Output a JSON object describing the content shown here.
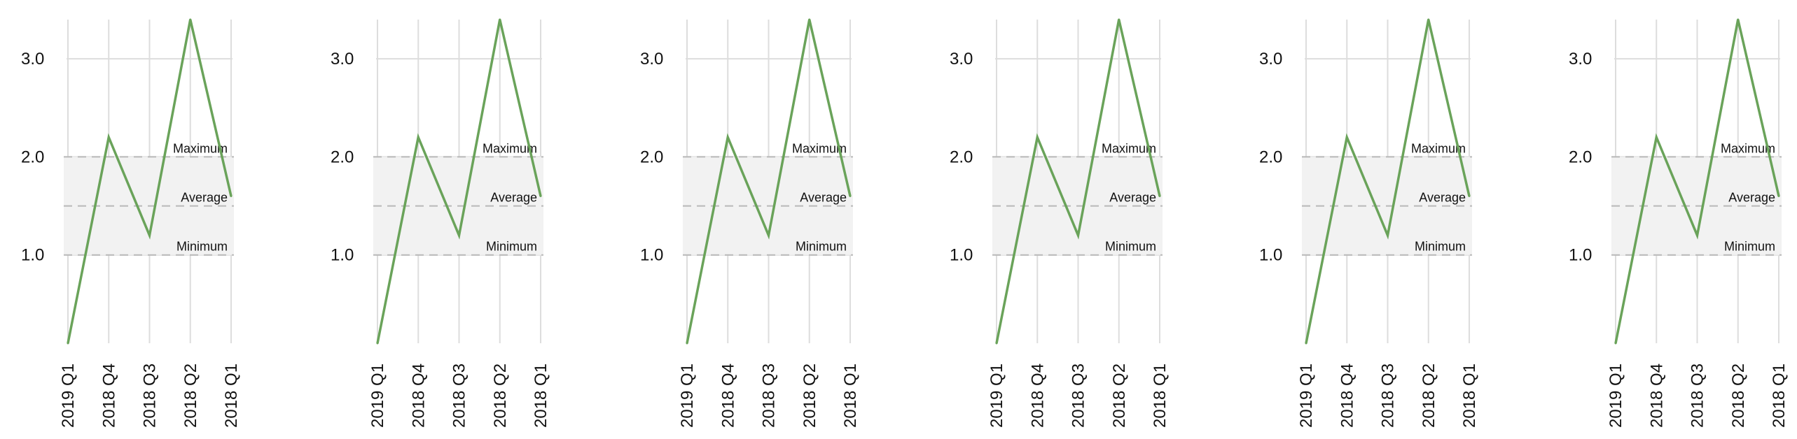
{
  "colors": {
    "series": "#6aa35a",
    "band": "#f2f2f2",
    "grid": "#dddddd",
    "reference": "#b8b8b8"
  },
  "chart_data": [
    {
      "type": "line",
      "categories": [
        "2019 Q1",
        "2018 Q4",
        "2018 Q3",
        "2018 Q2",
        "2018 Q1"
      ],
      "values": [
        0.1,
        2.2,
        1.2,
        3.4,
        1.6
      ],
      "ylim": [
        0.1,
        3.4
      ],
      "yticks": [
        "1.0",
        "2.0",
        "3.0"
      ],
      "grid": true,
      "band": {
        "min": 1.0,
        "max": 2.0
      },
      "reference_lines": [
        {
          "label": "Maximum",
          "value": 2.0
        },
        {
          "label": "Average",
          "value": 1.5
        },
        {
          "label": "Minimum",
          "value": 1.0
        }
      ]
    },
    {
      "type": "line",
      "categories": [
        "2019 Q1",
        "2018 Q4",
        "2018 Q3",
        "2018 Q2",
        "2018 Q1"
      ],
      "values": [
        0.1,
        2.2,
        1.2,
        3.4,
        1.6
      ],
      "ylim": [
        0.1,
        3.4
      ],
      "yticks": [
        "1.0",
        "2.0",
        "3.0"
      ],
      "grid": true,
      "band": {
        "min": 1.0,
        "max": 2.0
      },
      "reference_lines": [
        {
          "label": "Maximum",
          "value": 2.0
        },
        {
          "label": "Average",
          "value": 1.5
        },
        {
          "label": "Minimum",
          "value": 1.0
        }
      ]
    },
    {
      "type": "line",
      "categories": [
        "2019 Q1",
        "2018 Q4",
        "2018 Q3",
        "2018 Q2",
        "2018 Q1"
      ],
      "values": [
        0.1,
        2.2,
        1.2,
        3.4,
        1.6
      ],
      "ylim": [
        0.1,
        3.4
      ],
      "yticks": [
        "1.0",
        "2.0",
        "3.0"
      ],
      "grid": true,
      "band": {
        "min": 1.0,
        "max": 2.0
      },
      "reference_lines": [
        {
          "label": "Maximum",
          "value": 2.0
        },
        {
          "label": "Average",
          "value": 1.5
        },
        {
          "label": "Minimum",
          "value": 1.0
        }
      ]
    },
    {
      "type": "line",
      "categories": [
        "2019 Q1",
        "2018 Q4",
        "2018 Q3",
        "2018 Q2",
        "2018 Q1"
      ],
      "values": [
        0.1,
        2.2,
        1.2,
        3.4,
        1.6
      ],
      "ylim": [
        0.1,
        3.4
      ],
      "yticks": [
        "1.0",
        "2.0",
        "3.0"
      ],
      "grid": true,
      "band": {
        "min": 1.0,
        "max": 2.0
      },
      "reference_lines": [
        {
          "label": "Maximum",
          "value": 2.0
        },
        {
          "label": "Average",
          "value": 1.5
        },
        {
          "label": "Minimum",
          "value": 1.0
        }
      ]
    },
    {
      "type": "line",
      "categories": [
        "2019 Q1",
        "2018 Q4",
        "2018 Q3",
        "2018 Q2",
        "2018 Q1"
      ],
      "values": [
        0.1,
        2.2,
        1.2,
        3.4,
        1.6
      ],
      "ylim": [
        0.1,
        3.4
      ],
      "yticks": [
        "1.0",
        "2.0",
        "3.0"
      ],
      "grid": true,
      "band": {
        "min": 1.0,
        "max": 2.0
      },
      "reference_lines": [
        {
          "label": "Maximum",
          "value": 2.0
        },
        {
          "label": "Average",
          "value": 1.5
        },
        {
          "label": "Minimum",
          "value": 1.0
        }
      ]
    },
    {
      "type": "line",
      "categories": [
        "2019 Q1",
        "2018 Q4",
        "2018 Q3",
        "2018 Q2",
        "2018 Q1"
      ],
      "values": [
        0.1,
        2.2,
        1.2,
        3.4,
        1.6
      ],
      "ylim": [
        0.1,
        3.4
      ],
      "yticks": [
        "1.0",
        "2.0",
        "3.0"
      ],
      "grid": true,
      "band": {
        "min": 1.0,
        "max": 2.0
      },
      "reference_lines": [
        {
          "label": "Maximum",
          "value": 2.0
        },
        {
          "label": "Average",
          "value": 1.5
        },
        {
          "label": "Minimum",
          "value": 1.0
        }
      ]
    }
  ]
}
